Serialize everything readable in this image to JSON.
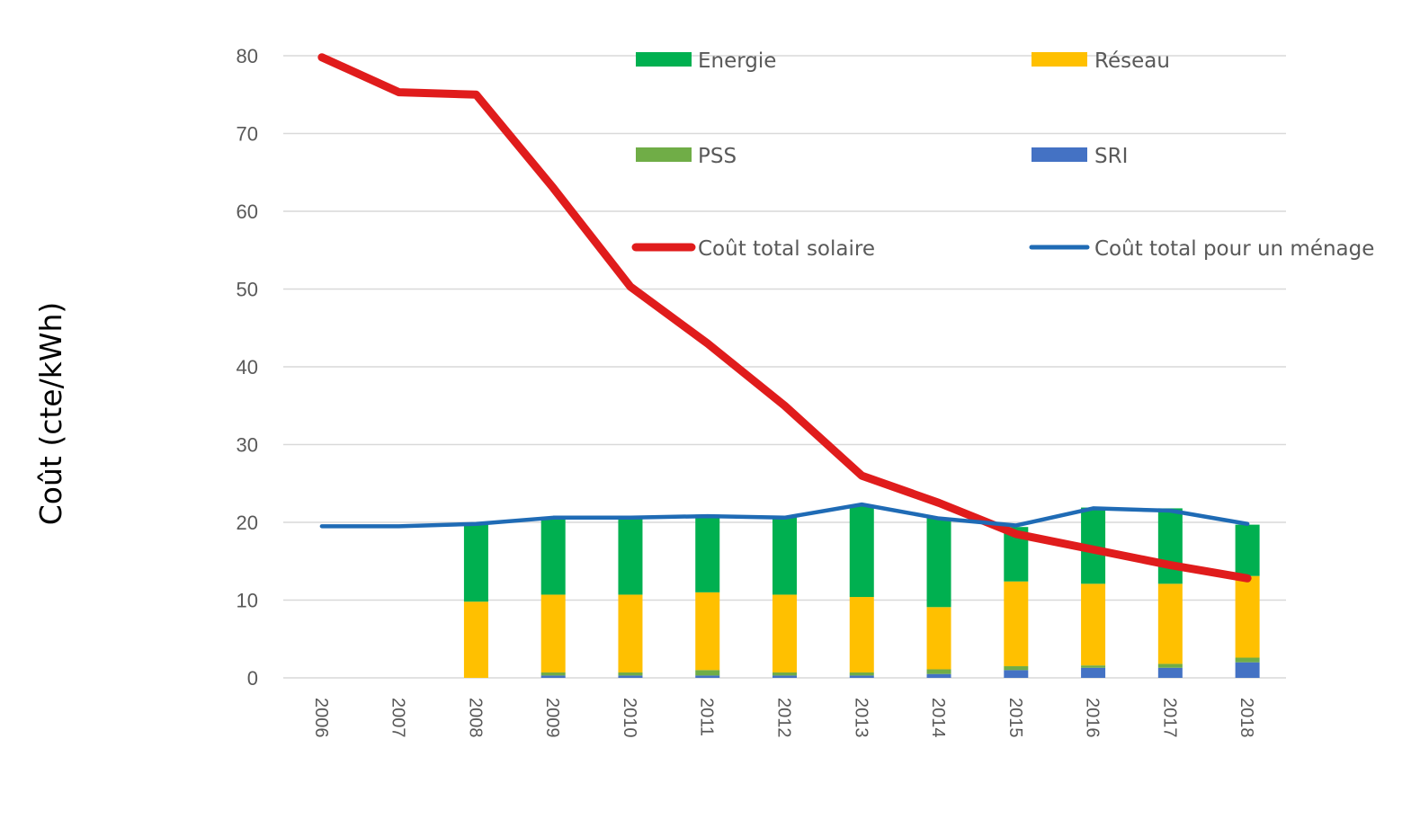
{
  "chart_data": {
    "type": "bar",
    "title": "",
    "xlabel": "",
    "ylabel": "Coût (cte/kWh)",
    "ylim": [
      0,
      80
    ],
    "yticks": [
      0,
      10,
      20,
      30,
      40,
      50,
      60,
      70,
      80
    ],
    "grid": true,
    "legend_placement": "top",
    "categories": [
      "2006",
      "2007",
      "2008",
      "2009",
      "2010",
      "2011",
      "2012",
      "2013",
      "2014",
      "2015",
      "2016",
      "2017",
      "2018"
    ],
    "bar_series": [
      {
        "name": "SRI",
        "color": "#4472c4",
        "values": [
          0,
          0,
          0,
          0.3,
          0.3,
          0.3,
          0.3,
          0.3,
          0.5,
          1.0,
          1.3,
          1.3,
          2.0
        ]
      },
      {
        "name": "PSS",
        "color": "#70ad47",
        "values": [
          0,
          0,
          0,
          0.4,
          0.4,
          0.7,
          0.4,
          0.4,
          0.6,
          0.5,
          0.3,
          0.5,
          0.6
        ]
      },
      {
        "name": "Réseau",
        "color": "#ffc000",
        "values": [
          0,
          0,
          9.8,
          10.0,
          10.0,
          10.0,
          10.0,
          9.7,
          8.0,
          10.9,
          10.5,
          10.3,
          10.5
        ]
      },
      {
        "name": "Energie",
        "color": "#00b050",
        "values": [
          0,
          0,
          9.9,
          10.0,
          10.0,
          10.0,
          10.0,
          11.8,
          11.5,
          7.0,
          9.8,
          9.7,
          6.6
        ]
      }
    ],
    "line_series": [
      {
        "name": "Coût total solaire",
        "color": "#e01c1c",
        "values": [
          79.8,
          75.3,
          75.0,
          63.0,
          50.3,
          43.0,
          35.0,
          26.0,
          22.5,
          18.5,
          16.5,
          14.5,
          12.8
        ]
      },
      {
        "name": "Coût total pour un ménage",
        "color": "#1f6bb5",
        "values": [
          19.5,
          19.5,
          19.8,
          20.6,
          20.6,
          20.8,
          20.6,
          22.3,
          20.5,
          19.6,
          21.8,
          21.5,
          19.8
        ]
      }
    ],
    "legend": [
      {
        "label": "Energie",
        "color": "#00b050",
        "kind": "bar"
      },
      {
        "label": "Réseau",
        "color": "#ffc000",
        "kind": "bar"
      },
      {
        "label": "PSS",
        "color": "#70ad47",
        "kind": "bar"
      },
      {
        "label": "SRI",
        "color": "#4472c4",
        "kind": "bar"
      },
      {
        "label": "Coût total solaire",
        "color": "#e01c1c",
        "kind": "line"
      },
      {
        "label": "Coût total pour un ménage",
        "color": "#1f6bb5",
        "kind": "line"
      }
    ]
  }
}
